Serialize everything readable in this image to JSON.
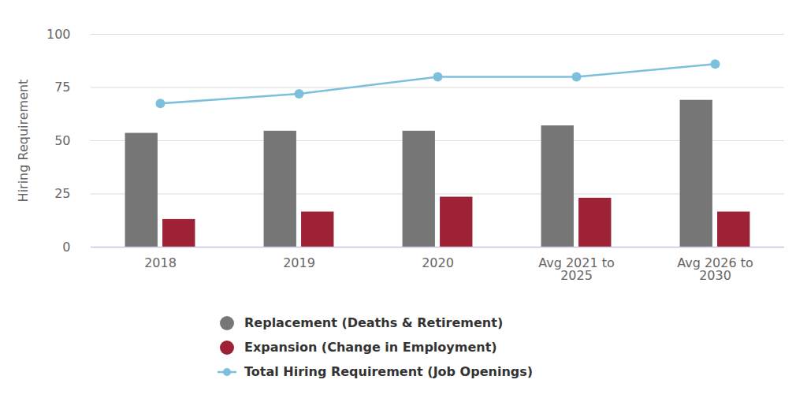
{
  "chart_data": {
    "type": "bar",
    "categories": [
      "2018",
      "2019",
      "2020",
      "Avg 2021 to\n2025",
      "Avg 2026 to\n2030"
    ],
    "series": [
      {
        "name": "Replacement (Deaths & Retirement)",
        "type": "bar",
        "color": "#777777",
        "values": [
          53.5,
          54.5,
          54.5,
          57,
          69
        ]
      },
      {
        "name": "Expansion (Change in Employment)",
        "type": "bar",
        "color": "#9d2235",
        "values": [
          13,
          16.5,
          23.5,
          23,
          16.5
        ]
      },
      {
        "name": "Total Hiring Requirement (Job Openings)",
        "type": "line",
        "marker": "circle",
        "color": "#7cc0dc",
        "values": [
          67.5,
          72,
          80,
          80,
          86
        ]
      }
    ],
    "y_label": "Hiring Requirement",
    "ylim": [
      0,
      100
    ],
    "yticks": [
      0,
      25,
      50,
      75,
      100
    ],
    "grid": true,
    "legend": "bottom"
  }
}
